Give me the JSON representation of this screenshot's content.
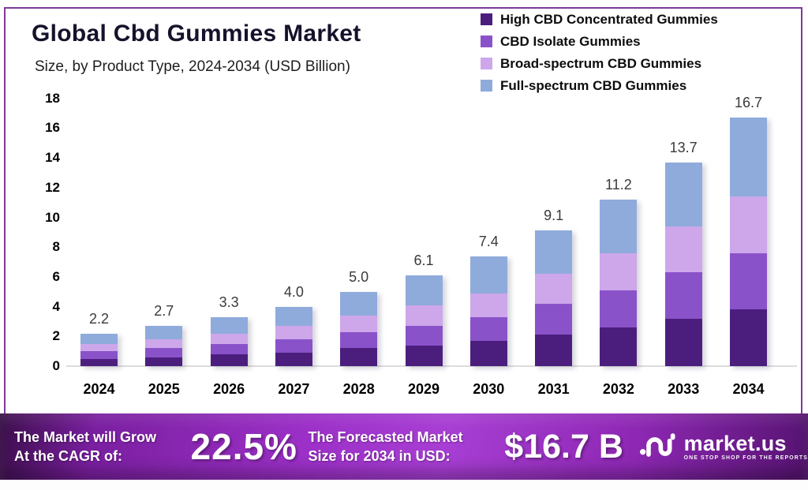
{
  "header": {
    "title": "Global Cbd Gummies Market",
    "subtitle": "Size, by Product Type, 2024-2034 (USD Billion)"
  },
  "chart_data": {
    "type": "bar",
    "stacked": true,
    "title": "Global Cbd Gummies Market Size, by Product Type, 2024-2034 (USD Billion)",
    "categories": [
      "2024",
      "2025",
      "2026",
      "2027",
      "2028",
      "2029",
      "2030",
      "2031",
      "2032",
      "2033",
      "2034"
    ],
    "series": [
      {
        "name": "High CBD Concentrated Gummies",
        "color": "#4b1e7e",
        "values": [
          0.5,
          0.6,
          0.8,
          0.9,
          1.2,
          1.4,
          1.7,
          2.1,
          2.6,
          3.2,
          3.8
        ]
      },
      {
        "name": "CBD Isolate Gummies",
        "color": "#8a52c9",
        "values": [
          0.5,
          0.6,
          0.7,
          0.9,
          1.1,
          1.3,
          1.6,
          2.1,
          2.5,
          3.1,
          3.8
        ]
      },
      {
        "name": "Broad-spectrum CBD Gummies",
        "color": "#cda7ea",
        "values": [
          0.5,
          0.6,
          0.7,
          0.9,
          1.1,
          1.4,
          1.6,
          2.0,
          2.5,
          3.1,
          3.8
        ]
      },
      {
        "name": "Full-spectrum CBD Gummies",
        "color": "#8fabdc",
        "values": [
          0.7,
          0.9,
          1.1,
          1.3,
          1.6,
          2.0,
          2.5,
          2.9,
          3.6,
          4.3,
          5.3
        ]
      }
    ],
    "totals": [
      2.2,
      2.7,
      3.3,
      4.0,
      5.0,
      6.1,
      7.4,
      9.1,
      11.2,
      13.7,
      16.7
    ],
    "xlabel": "",
    "ylabel": "",
    "ylim": [
      0,
      18
    ],
    "yticks": [
      0,
      2,
      4,
      6,
      8,
      10,
      12,
      14,
      16,
      18
    ],
    "legend_position": "top-right",
    "grid": false,
    "unit": "USD Billion"
  },
  "banner": {
    "cagr_label_line1": "The Market will Grow",
    "cagr_label_line2": "At the CAGR of:",
    "cagr_value": "22.5%",
    "forecast_label_line1": "The Forecasted Market",
    "forecast_label_line2": "Size for 2034 in USD:",
    "forecast_value": "$16.7 B",
    "brand_name": "market.us",
    "brand_tagline": "ONE STOP SHOP FOR THE REPORTS"
  },
  "colors": {
    "frame_border": "#7d3a9a",
    "axis_line": "#dcdcdc",
    "title_text": "#15122b",
    "banner_bright": "#9c30c8",
    "banner_dark": "#3c0e4b"
  }
}
